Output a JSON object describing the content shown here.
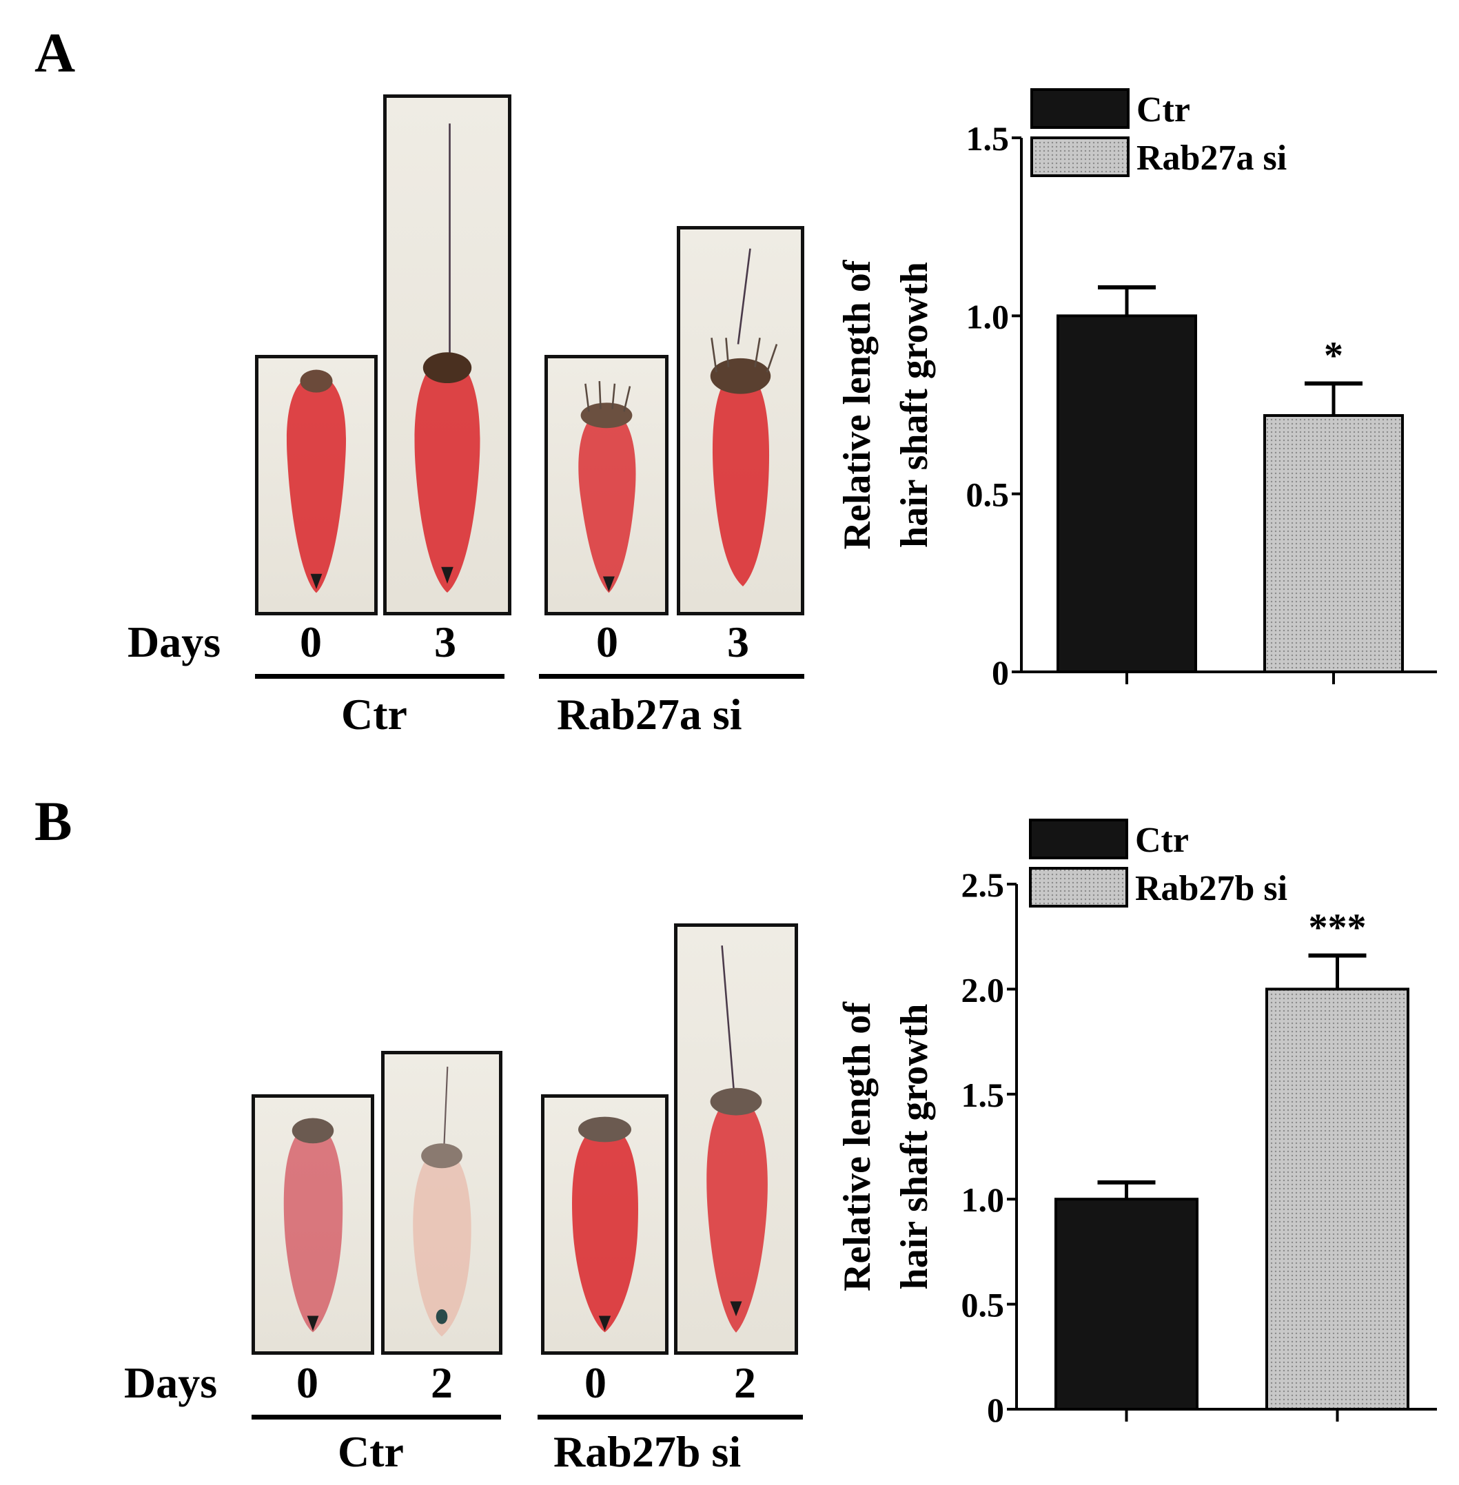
{
  "colors": {
    "ctr_bar": "#141414",
    "si_bar": "#c8c8c8",
    "axis": "#000000"
  },
  "panels": [
    {
      "letter": "A",
      "days_label": "Days",
      "photo_groups": [
        {
          "group_label": "Ctr",
          "day_labels": [
            "0",
            "3"
          ]
        },
        {
          "group_label": "Rab27a si",
          "day_labels": [
            "0",
            "3"
          ]
        }
      ]
    },
    {
      "letter": "B",
      "days_label": "Days",
      "photo_groups": [
        {
          "group_label": "Ctr",
          "day_labels": [
            "0",
            "2"
          ]
        },
        {
          "group_label": "Rab27b si",
          "day_labels": [
            "0",
            "2"
          ]
        }
      ]
    }
  ],
  "chart_data": [
    {
      "type": "bar",
      "ylabel_line1": "Relative length of",
      "ylabel_line2": "hair shaft growth",
      "ylim": [
        0,
        1.5
      ],
      "yticks": [
        "0",
        "0.5",
        "1.0",
        "1.5"
      ],
      "ytick_values": [
        0,
        0.5,
        1.0,
        1.5
      ],
      "legend": [
        "Ctr",
        "Rab27a si"
      ],
      "categories": [
        "Ctr",
        "Rab27a si"
      ],
      "values": [
        1.0,
        0.72
      ],
      "errors": [
        0.08,
        0.09
      ],
      "significance": [
        "",
        "*"
      ]
    },
    {
      "type": "bar",
      "ylabel_line1": "Relative length of",
      "ylabel_line2": "hair shaft growth",
      "ylim": [
        0,
        2.5
      ],
      "yticks": [
        "0",
        "0.5",
        "1.0",
        "1.5",
        "2.0",
        "2.5"
      ],
      "ytick_values": [
        0,
        0.5,
        1.0,
        1.5,
        2.0,
        2.5
      ],
      "legend": [
        "Ctr",
        "Rab27b si"
      ],
      "categories": [
        "Ctr",
        "Rab27b si"
      ],
      "values": [
        1.0,
        2.0
      ],
      "errors": [
        0.08,
        0.16
      ],
      "significance": [
        "",
        "***"
      ]
    }
  ]
}
